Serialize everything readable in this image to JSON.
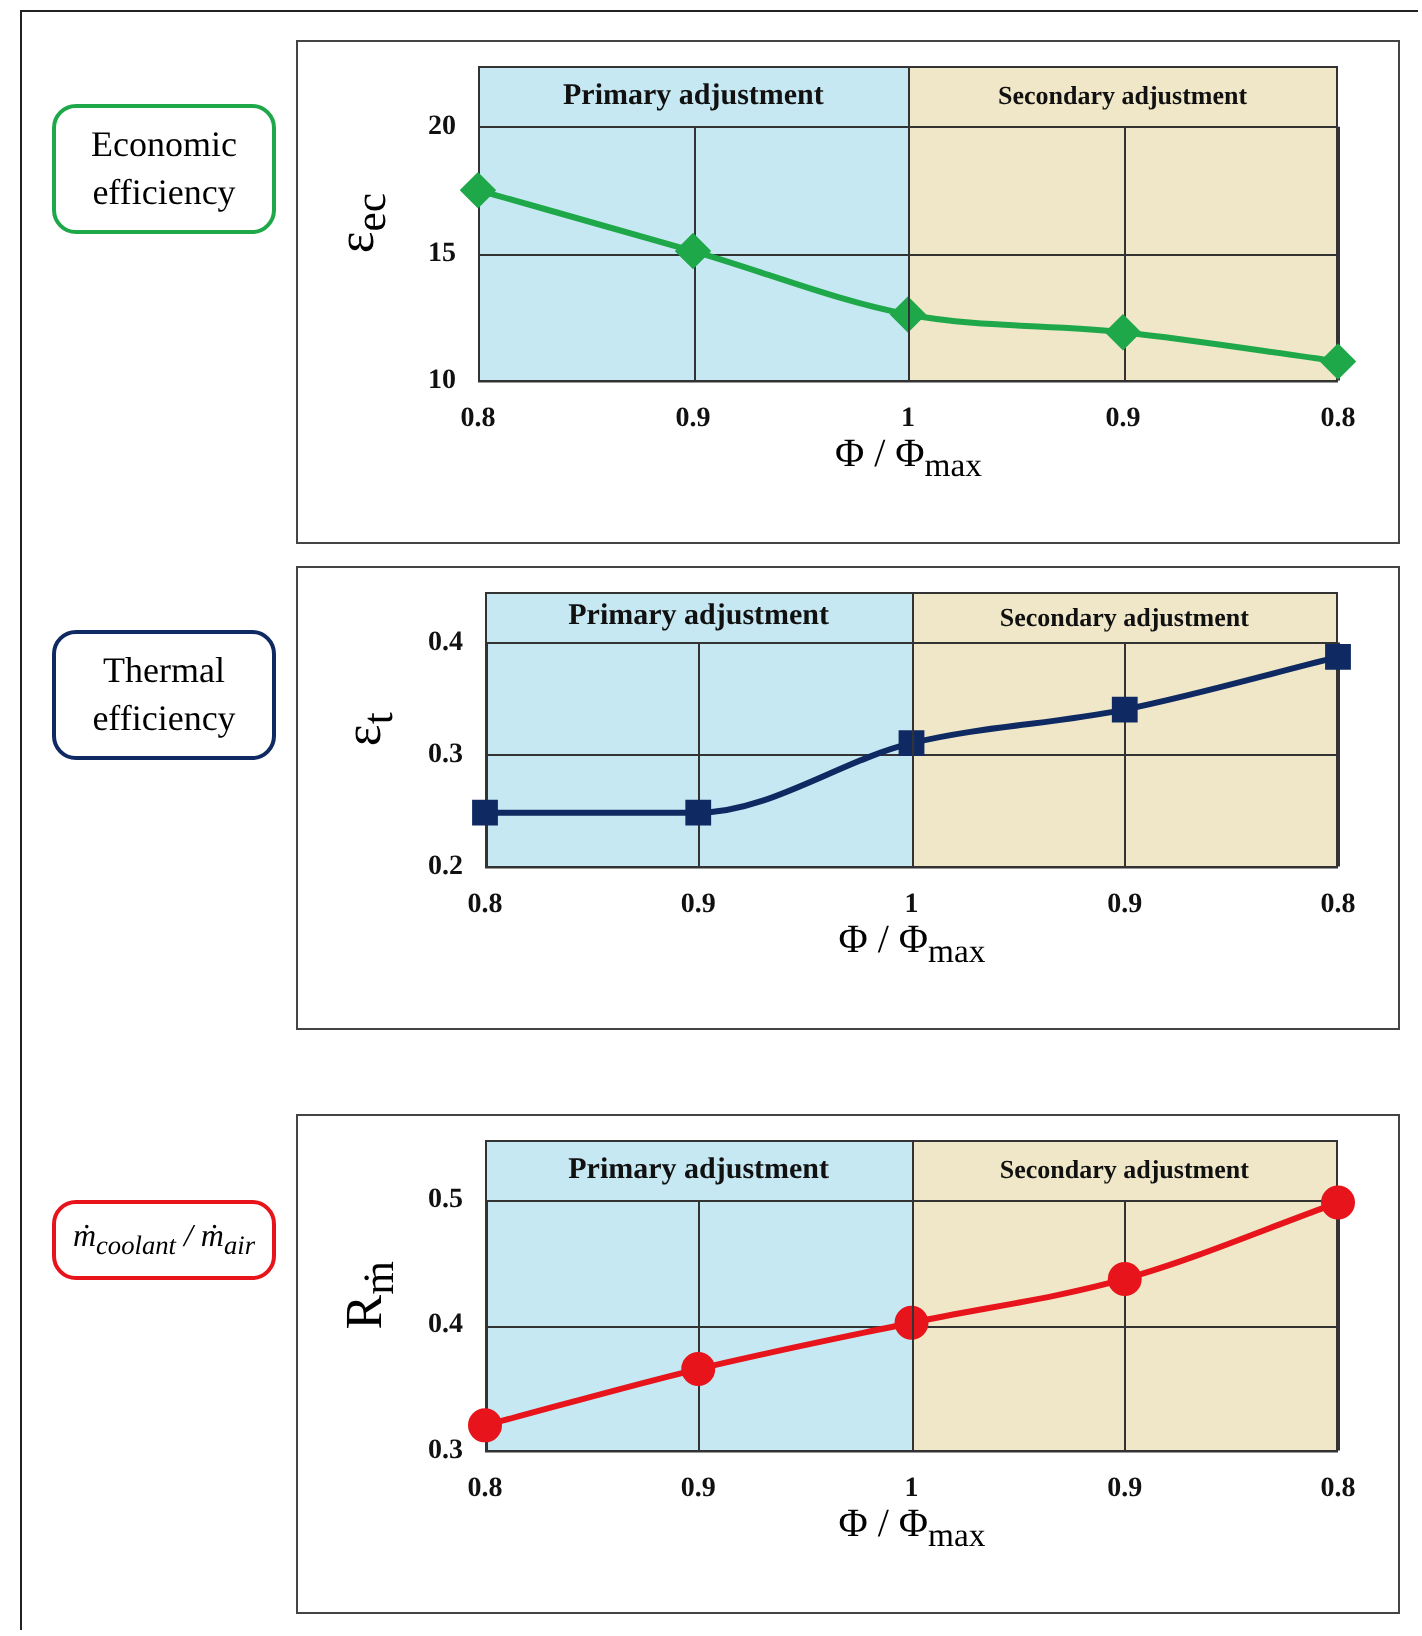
{
  "chart_data": [
    {
      "type": "line",
      "xlabel": "Φ / Φ$_{max}$",
      "ylabel": "ε$_{ec}$",
      "annotations": [
        "Economic efficiency",
        "Primary adjustment",
        "Secondary adjustment"
      ],
      "categories": [
        "0.8",
        "0.9",
        "1",
        "0.9",
        "0.8"
      ],
      "series": [
        {
          "color": "#1fa84a",
          "values": [
            17.5,
            15.1,
            12.6,
            11.9,
            10.75
          ]
        }
      ],
      "ylim": [
        10,
        22.4
      ],
      "yticks": [
        10,
        15,
        20
      ],
      "grid": true,
      "legend": false,
      "marker": "diamond",
      "line_style": "solid"
    },
    {
      "type": "line",
      "xlabel": "Φ / Φ$_{max}$",
      "ylabel": "ε$_{t}$",
      "annotations": [
        "Thermal efficiency",
        "Primary adjustment",
        "Secondary adjustment"
      ],
      "categories": [
        "0.8",
        "0.9",
        "1",
        "0.9",
        "0.8"
      ],
      "series": [
        {
          "color": "#0f2a63",
          "values": [
            0.248,
            0.248,
            0.31,
            0.34,
            0.387
          ]
        }
      ],
      "ylim": [
        0.2,
        0.445
      ],
      "yticks": [
        0.2,
        0.3,
        0.4
      ],
      "grid": true,
      "legend": false,
      "marker": "square",
      "line_style": "solid"
    },
    {
      "type": "line",
      "xlabel": "Φ / Φ$_{max}$",
      "ylabel": "R$_{ṁ}$",
      "annotations": [
        "ṁ$_{coolant}$ / ṁ$_{air}$",
        "Primary adjustment",
        "Secondary adjustment"
      ],
      "categories": [
        "0.8",
        "0.9",
        "1",
        "0.9",
        "0.8"
      ],
      "series": [
        {
          "color": "#e8141c",
          "values": [
            0.32,
            0.365,
            0.402,
            0.437,
            0.498
          ]
        }
      ],
      "ylim": [
        0.3,
        0.548
      ],
      "yticks": [
        0.3,
        0.4,
        0.5
      ],
      "grid": true,
      "legend": false,
      "marker": "circle",
      "line_style": "solid"
    }
  ]
}
